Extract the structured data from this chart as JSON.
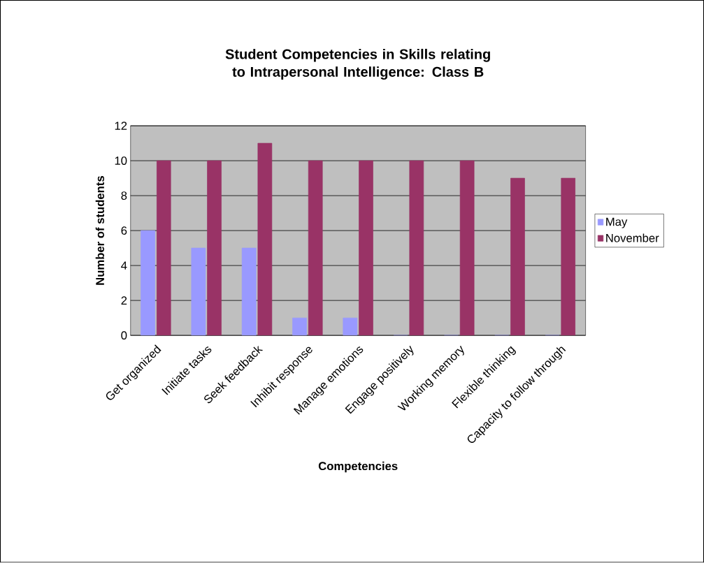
{
  "chart_data": {
    "type": "bar",
    "title": "Student Competencies in Skills relating to Intrapersonal Intelligence: Class B",
    "xlabel": "Competencies",
    "ylabel": "Number of students",
    "categories": [
      "Get organized",
      "Initiate tasks",
      "Seek feedback",
      "Inhibit response",
      "Manage emotions",
      "Engage positively",
      "Working memory",
      "Flexible thinking",
      "Capacity to follow through"
    ],
    "series": [
      {
        "name": "May",
        "color": "#9999ff",
        "values": [
          6,
          5,
          5,
          1,
          1,
          0,
          0,
          0,
          0
        ]
      },
      {
        "name": "November",
        "color": "#993366",
        "values": [
          10,
          10,
          11,
          10,
          10,
          10,
          10,
          9,
          9
        ]
      }
    ],
    "ylim": [
      0,
      12
    ],
    "yticks": [
      0,
      2,
      4,
      6,
      8,
      10,
      12
    ],
    "grid": "y",
    "legend": "right"
  }
}
